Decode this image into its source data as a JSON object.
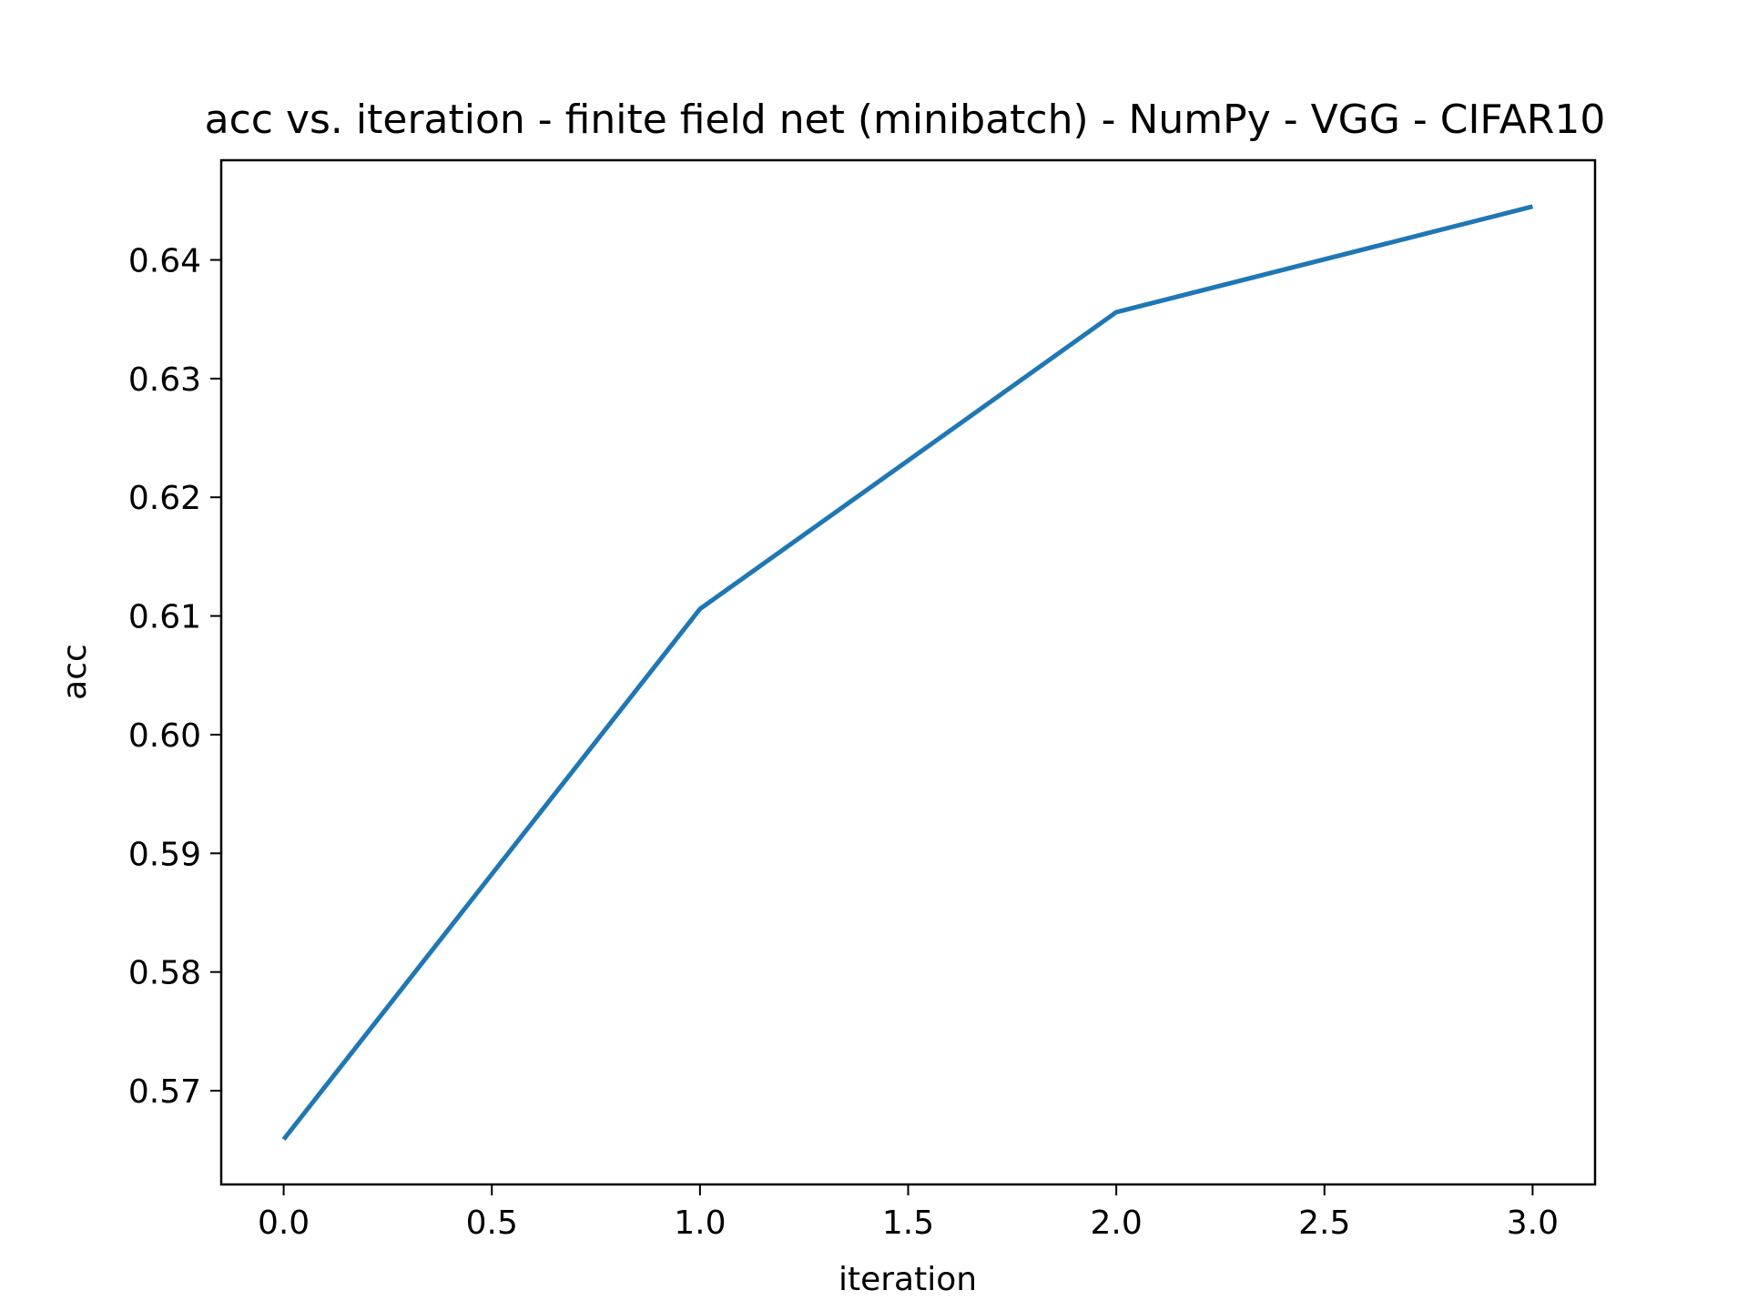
{
  "chart_data": {
    "type": "line",
    "title": "acc vs. iteration - finite field net (minibatch) - NumPy - VGG - CIFAR10",
    "xlabel": "iteration",
    "ylabel": "acc",
    "x": [
      0,
      1,
      2,
      3
    ],
    "series": [
      {
        "values": [
          0.5659,
          0.6106,
          0.6356,
          0.6445
        ],
        "color": "#1f77b4"
      }
    ],
    "xlim": [
      -0.15,
      3.15
    ],
    "ylim": [
      0.5621,
      0.6484
    ],
    "xticks": [
      0.0,
      0.5,
      1.0,
      1.5,
      2.0,
      2.5,
      3.0
    ],
    "xtick_labels": [
      "0.0",
      "0.5",
      "1.0",
      "1.5",
      "2.0",
      "2.5",
      "3.0"
    ],
    "yticks": [
      0.57,
      0.58,
      0.59,
      0.6,
      0.61,
      0.62,
      0.63,
      0.64
    ],
    "ytick_labels": [
      "0.57",
      "0.58",
      "0.59",
      "0.60",
      "0.61",
      "0.62",
      "0.63",
      "0.64"
    ],
    "grid": false,
    "legend": "none"
  }
}
